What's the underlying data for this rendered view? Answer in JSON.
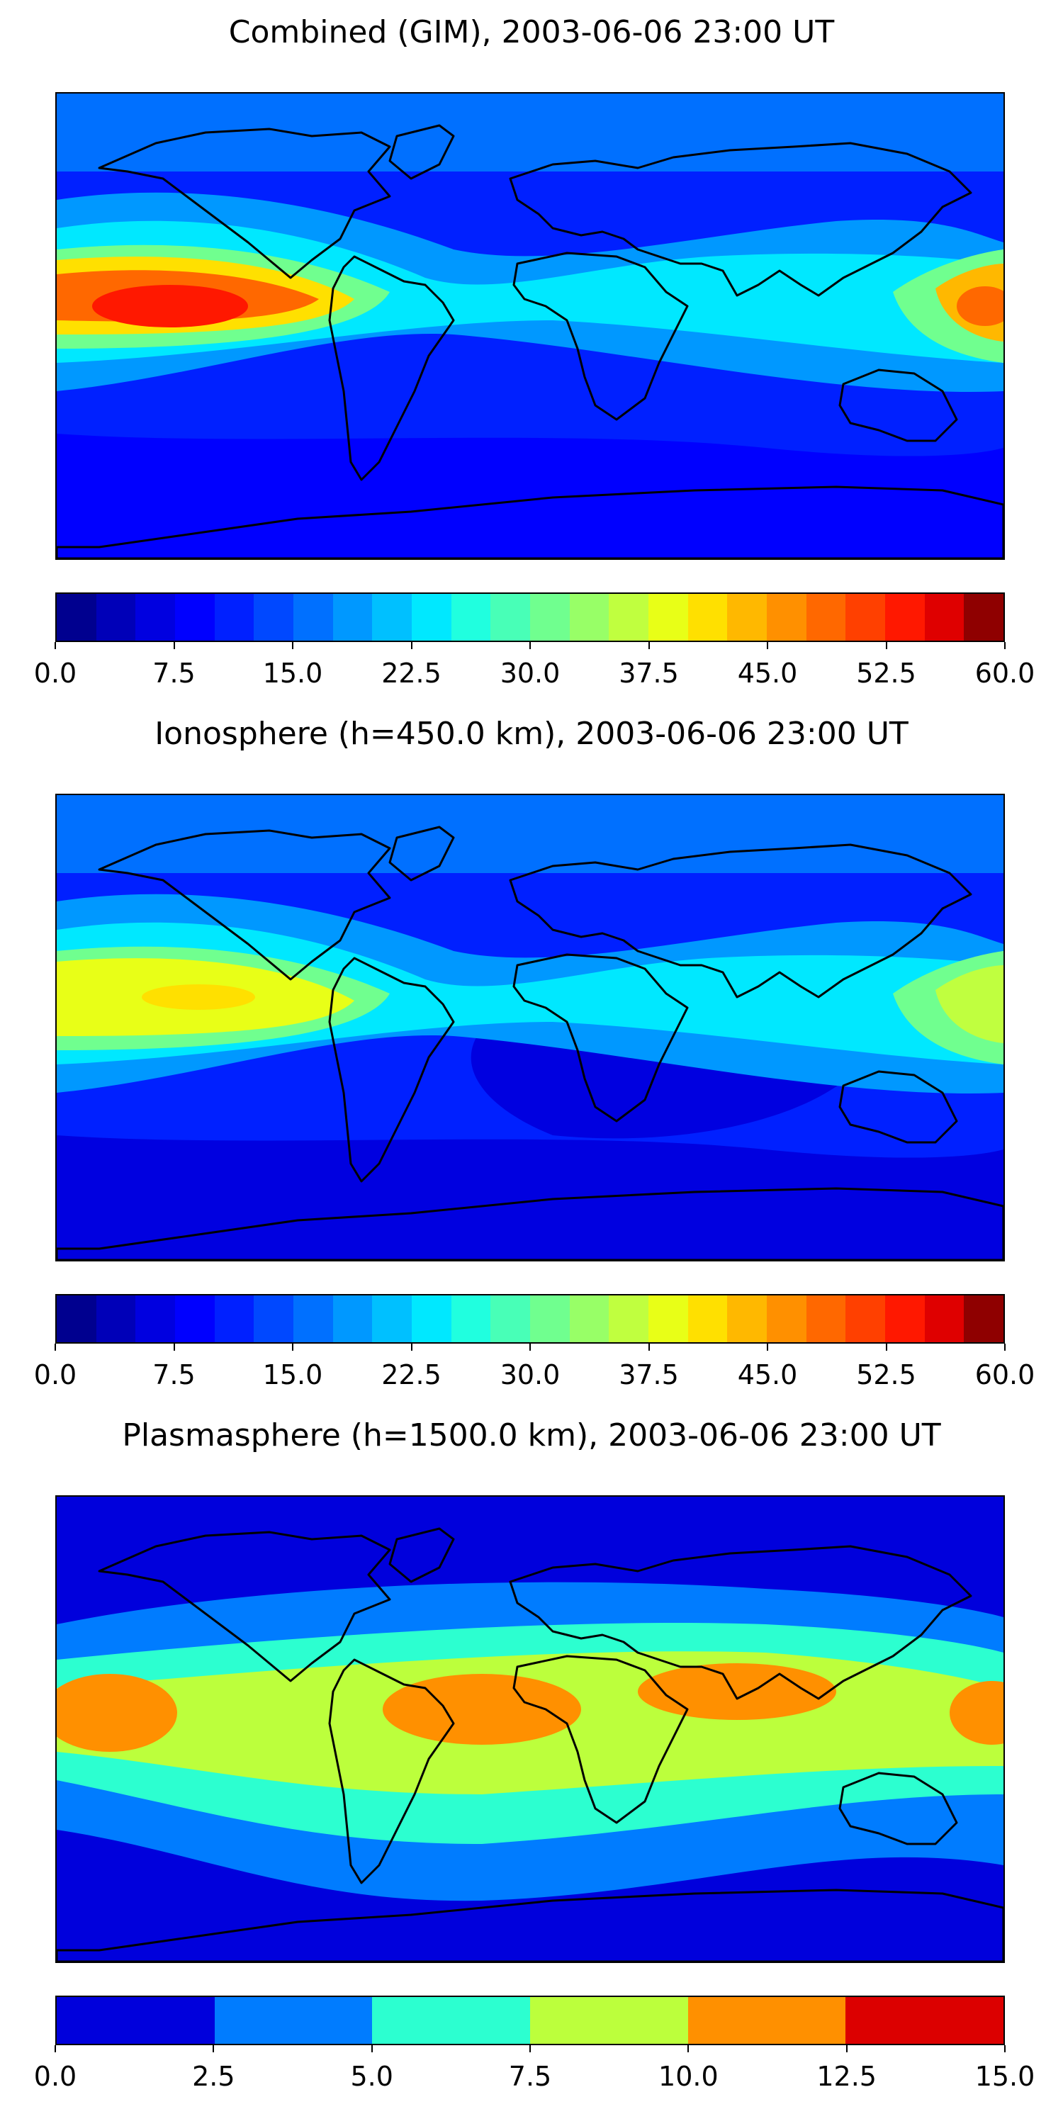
{
  "panels": [
    {
      "title": "Combined (GIM), 2003-06-06 23:00 UT",
      "colorbar_ticks": [
        "0.0",
        "7.5",
        "15.0",
        "22.5",
        "30.0",
        "37.5",
        "45.0",
        "52.5",
        "60.0"
      ],
      "vmin": 0,
      "vmax": 60,
      "levels": 24,
      "peak_region": "eastern Pacific equatorial",
      "max_value_approx": 55
    },
    {
      "title": "Ionosphere  (h=450.0 km), 2003-06-06 23:00 UT",
      "colorbar_ticks": [
        "0.0",
        "7.5",
        "15.0",
        "22.5",
        "30.0",
        "37.5",
        "45.0",
        "52.5",
        "60.0"
      ],
      "vmin": 0,
      "vmax": 60,
      "levels": 24,
      "peak_region": "eastern Pacific equatorial",
      "max_value_approx": 42
    },
    {
      "title": "Plasmasphere (h=1500.0 km), 2003-06-06 23:00 UT",
      "colorbar_ticks": [
        "0.0",
        "2.5",
        "5.0",
        "7.5",
        "10.0",
        "12.5",
        "15.0"
      ],
      "vmin": 0,
      "vmax": 15,
      "levels": 6,
      "peak_region": "equatorial band",
      "max_value_approx": 12
    }
  ],
  "colormap": "jet",
  "colors": {
    "jet24": [
      "#00008f",
      "#0000b8",
      "#0000e0",
      "#0000ff",
      "#0020ff",
      "#0048ff",
      "#0070ff",
      "#0098ff",
      "#00c0ff",
      "#00e8ff",
      "#20ffdf",
      "#48ffb7",
      "#70ff8f",
      "#98ff67",
      "#c0ff3f",
      "#e8ff17",
      "#ffe000",
      "#ffb800",
      "#ff9000",
      "#ff6800",
      "#ff4000",
      "#ff1800",
      "#df0000",
      "#8f0000"
    ],
    "jet6": [
      "#0000dc",
      "#007cff",
      "#2cffd0",
      "#bcff3c",
      "#ff9000",
      "#dc0000"
    ]
  }
}
